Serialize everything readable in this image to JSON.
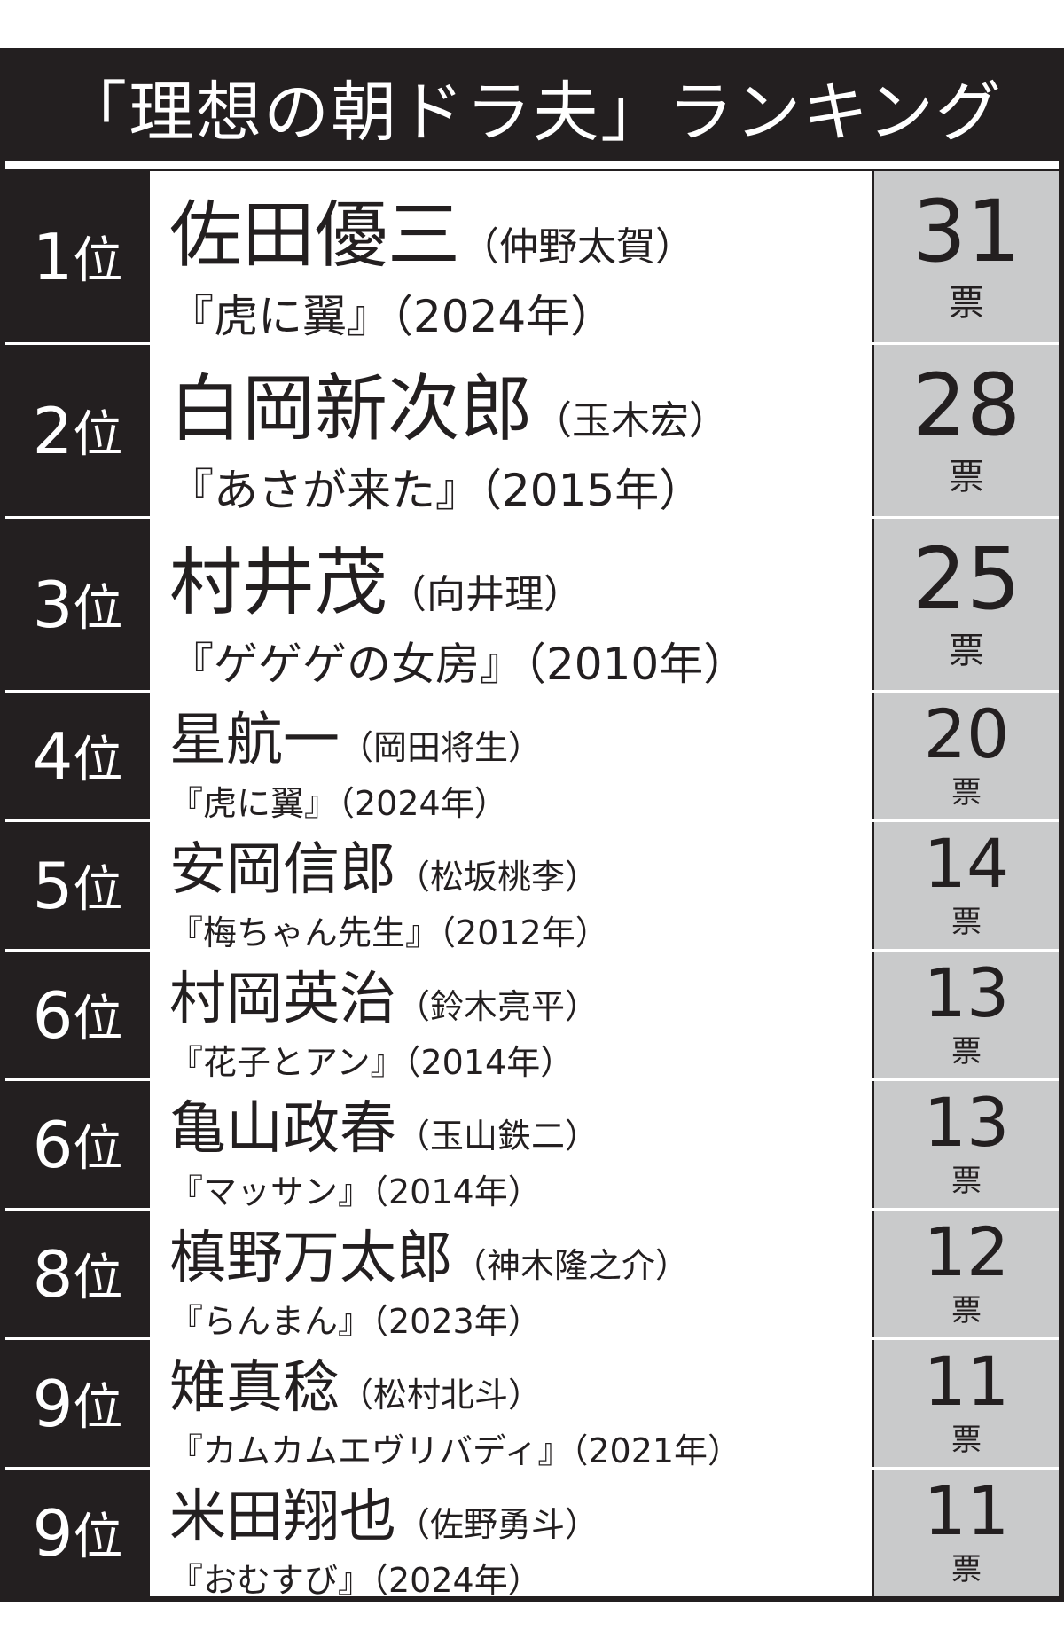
{
  "title": "「理想の朝ドラ夫」ランキング",
  "rank_suffix": "位",
  "vote_unit": "票",
  "rows": [
    {
      "rank": "1",
      "character": "佐田優三",
      "actor": "（仲野太賀）",
      "drama": "『虎に翼』（2024年）",
      "votes": "31"
    },
    {
      "rank": "2",
      "character": "白岡新次郎",
      "actor": "（玉木宏）",
      "drama": "『あさが来た』（2015年）",
      "votes": "28"
    },
    {
      "rank": "3",
      "character": "村井茂",
      "actor": "（向井理）",
      "drama": "『ゲゲゲの女房』（2010年）",
      "votes": "25"
    },
    {
      "rank": "4",
      "character": "星航一",
      "actor": "（岡田将生）",
      "drama": "『虎に翼』（2024年）",
      "votes": "20"
    },
    {
      "rank": "5",
      "character": "安岡信郎",
      "actor": "（松坂桃李）",
      "drama": "『梅ちゃん先生』（2012年）",
      "votes": "14"
    },
    {
      "rank": "6",
      "character": "村岡英治",
      "actor": "（鈴木亮平）",
      "drama": "『花子とアン』（2014年）",
      "votes": "13"
    },
    {
      "rank": "6",
      "character": "亀山政春",
      "actor": "（玉山鉄二）",
      "drama": "『マッサン』（2014年）",
      "votes": "13"
    },
    {
      "rank": "8",
      "character": "槙野万太郎",
      "actor": "（神木隆之介）",
      "drama": "『らんまん』（2023年）",
      "votes": "12"
    },
    {
      "rank": "9",
      "character": "雉真稔",
      "actor": "（松村北斗）",
      "drama": "『カムカムエヴリバディ』（2021年）",
      "votes": "11"
    },
    {
      "rank": "9",
      "character": "米田翔也",
      "actor": "（佐野勇斗）",
      "drama": "『おむすび』（2024年）",
      "votes": "11"
    }
  ]
}
